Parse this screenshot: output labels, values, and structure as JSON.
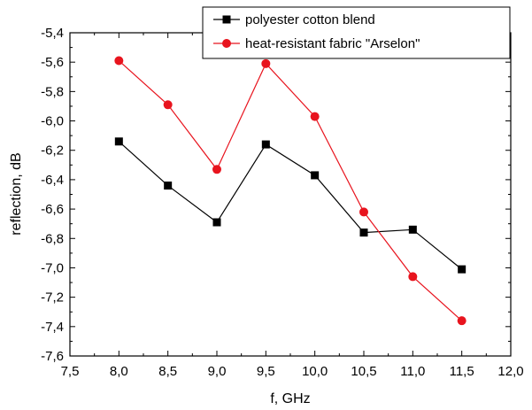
{
  "chart_data": {
    "type": "line",
    "title": "",
    "xlabel": "f, GHz",
    "ylabel": "reflection, dB",
    "xlim": [
      7.5,
      12.0
    ],
    "ylim": [
      -7.6,
      -5.4
    ],
    "xticks": [
      "7,5",
      "8,0",
      "8,5",
      "9,0",
      "9,5",
      "10,0",
      "10,5",
      "11,0",
      "11,5",
      "12,0"
    ],
    "yticks": [
      "-5,4",
      "-5,6",
      "-5,8",
      "-6,0",
      "-6,2",
      "-6,4",
      "-6,6",
      "-6,8",
      "-7,0",
      "-7,2",
      "-7,4",
      "-7,6"
    ],
    "grid": false,
    "legend_position": "top-right",
    "x": [
      8.0,
      8.5,
      9.0,
      9.5,
      10.0,
      10.5,
      11.0,
      11.5
    ],
    "series": [
      {
        "name": "polyester cotton blend",
        "color": "#000000",
        "marker": "square",
        "values": [
          -6.14,
          -6.44,
          -6.69,
          -6.16,
          -6.37,
          -6.76,
          -6.74,
          -7.01
        ]
      },
      {
        "name": "heat-resistant fabric \"Arselon\"",
        "color": "#e8141e",
        "marker": "circle",
        "values": [
          -5.59,
          -5.89,
          -6.33,
          -5.61,
          -5.97,
          -6.62,
          -7.06,
          -7.36
        ]
      }
    ]
  }
}
